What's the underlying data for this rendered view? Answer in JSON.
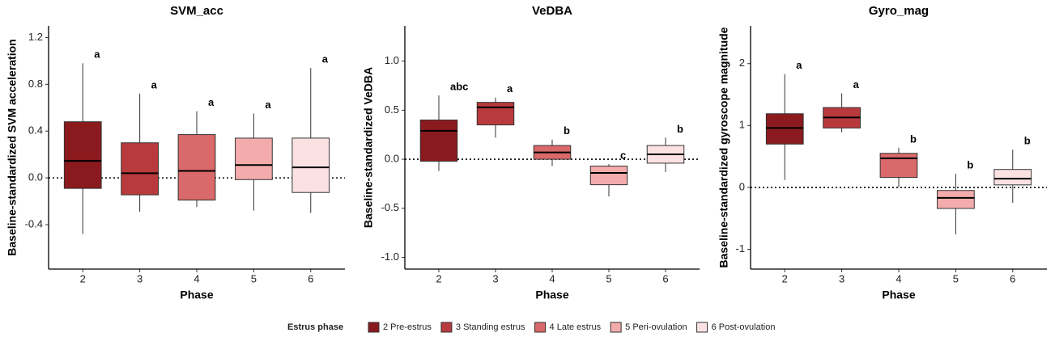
{
  "chart_data": [
    {
      "type": "box",
      "title": "SVM_acc",
      "x_label": "Phase",
      "y_label": "Baseline-standardized SVM acceleration",
      "categories": [
        "2",
        "3",
        "4",
        "5",
        "6"
      ],
      "boxes": [
        {
          "whisker_low": -0.48,
          "q1": -0.09,
          "median": 0.145,
          "q3": 0.48,
          "whisker_high": 0.98
        },
        {
          "whisker_low": -0.29,
          "q1": -0.145,
          "median": 0.04,
          "q3": 0.3,
          "whisker_high": 0.72
        },
        {
          "whisker_low": -0.25,
          "q1": -0.19,
          "median": 0.06,
          "q3": 0.37,
          "whisker_high": 0.57
        },
        {
          "whisker_low": -0.28,
          "q1": -0.015,
          "median": 0.11,
          "q3": 0.34,
          "whisker_high": 0.55
        },
        {
          "whisker_low": -0.3,
          "q1": -0.125,
          "median": 0.09,
          "q3": 0.34,
          "whisker_high": 0.94
        }
      ],
      "letters": [
        "a",
        "a",
        "a",
        "a",
        "a"
      ],
      "hline": 0,
      "ylim": [
        -0.78,
        1.3
      ],
      "yticks": [
        -0.4,
        {
          "value": 0,
          "label": "0.0"
        },
        0.4,
        0.8,
        1.2
      ]
    },
    {
      "type": "box",
      "title": "VeDBA",
      "x_label": "Phase",
      "y_label": "Baseline-standardized VeDBA",
      "categories": [
        "2",
        "3",
        "4",
        "5",
        "6"
      ],
      "boxes": [
        {
          "whisker_low": -0.12,
          "q1": -0.02,
          "median": 0.29,
          "q3": 0.4,
          "whisker_high": 0.65
        },
        {
          "whisker_low": 0.22,
          "q1": 0.35,
          "median": 0.53,
          "q3": 0.58,
          "whisker_high": 0.63
        },
        {
          "whisker_low": -0.07,
          "q1": 0.0,
          "median": 0.07,
          "q3": 0.14,
          "whisker_high": 0.2
        },
        {
          "whisker_low": -0.38,
          "q1": -0.26,
          "median": -0.14,
          "q3": -0.07,
          "whisker_high": -0.05
        },
        {
          "whisker_low": -0.13,
          "q1": -0.04,
          "median": 0.05,
          "q3": 0.14,
          "whisker_high": 0.22
        }
      ],
      "letters": [
        "abc",
        "a",
        "b",
        "c",
        "b"
      ],
      "hline": 0,
      "ylim": [
        -1.12,
        1.36
      ],
      "yticks": [
        {
          "value": -1,
          "label": "-1.0"
        },
        -0.5,
        {
          "value": 0,
          "label": "0.0"
        },
        0.5,
        {
          "value": 1,
          "label": "1.0"
        }
      ]
    },
    {
      "type": "box",
      "title": "Gyro_mag",
      "x_label": "Phase",
      "y_label": "Baseline-standardized gyroscope magnitude",
      "categories": [
        "2",
        "3",
        "4",
        "5",
        "6"
      ],
      "boxes": [
        {
          "whisker_low": 0.12,
          "q1": 0.7,
          "median": 0.96,
          "q3": 1.19,
          "whisker_high": 1.83
        },
        {
          "whisker_low": 0.89,
          "q1": 0.96,
          "median": 1.13,
          "q3": 1.29,
          "whisker_high": 1.52
        },
        {
          "whisker_low": 0.0,
          "q1": 0.16,
          "median": 0.47,
          "q3": 0.55,
          "whisker_high": 0.64
        },
        {
          "whisker_low": -0.76,
          "q1": -0.34,
          "median": -0.17,
          "q3": -0.05,
          "whisker_high": 0.22
        },
        {
          "whisker_low": -0.25,
          "q1": 0.04,
          "median": 0.14,
          "q3": 0.29,
          "whisker_high": 0.61
        }
      ],
      "letters": [
        "a",
        "a",
        "b",
        "b",
        "b"
      ],
      "hline": 0,
      "ylim": [
        -1.32,
        2.61
      ],
      "yticks": [
        -1,
        0,
        1,
        2
      ]
    }
  ],
  "legend": {
    "title": "Estrus phase",
    "entries": [
      "2 Pre-estrus",
      "3 Standing estrus",
      "4 Late estrus",
      "5 Peri-ovulation",
      "6 Post-ovulation"
    ],
    "colors": [
      "#8b1a1e",
      "#b83a3d",
      "#d9696a",
      "#f3abab",
      "#fbe1e1"
    ]
  }
}
